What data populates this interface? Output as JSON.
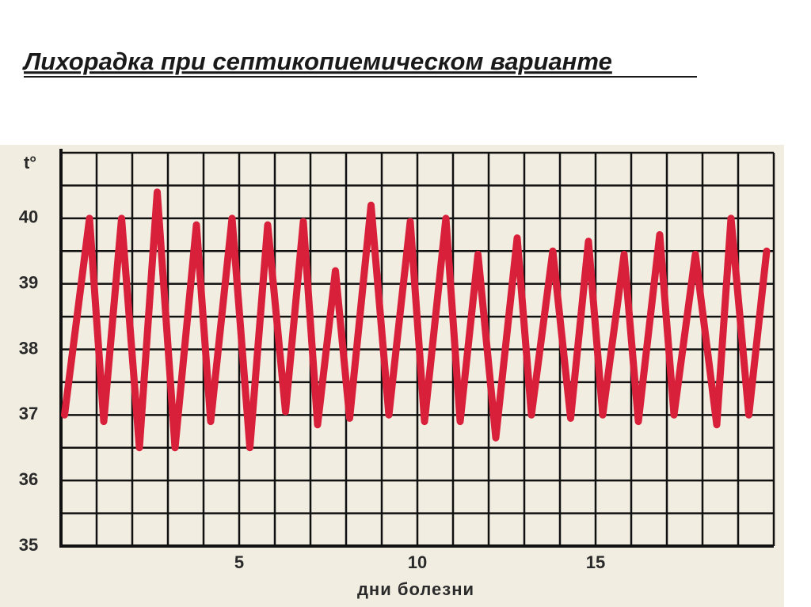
{
  "chart_data": {
    "type": "line",
    "title": "Лихорадка при септикопиемическом варианте",
    "y_label": "t°",
    "x_label": "дни болезни",
    "x": [
      0.1,
      0.8,
      1.2,
      1.7,
      2.2,
      2.7,
      3.2,
      3.8,
      4.2,
      4.8,
      5.3,
      5.8,
      6.3,
      6.8,
      7.2,
      7.7,
      8.1,
      8.7,
      9.2,
      9.8,
      10.2,
      10.8,
      11.2,
      11.7,
      12.2,
      12.8,
      13.2,
      13.8,
      14.3,
      14.8,
      15.2,
      15.8,
      16.2,
      16.8,
      17.2,
      17.8,
      18.4,
      18.8,
      19.3,
      19.8
    ],
    "series": [
      {
        "color": "#d9203a",
        "values": [
          37.0,
          40.0,
          36.9,
          40.0,
          36.5,
          40.4,
          36.5,
          39.9,
          36.9,
          40.0,
          36.5,
          39.9,
          37.05,
          39.95,
          36.85,
          39.2,
          36.95,
          40.2,
          37.0,
          39.95,
          36.9,
          40.0,
          36.9,
          39.45,
          36.65,
          39.7,
          37.0,
          39.5,
          36.95,
          39.65,
          37.0,
          39.45,
          36.9,
          39.75,
          37.0,
          39.45,
          36.85,
          40.0,
          37.0,
          39.5
        ]
      }
    ],
    "xlim": [
      0,
      20
    ],
    "ylim": [
      35,
      41
    ],
    "xticks": [
      5,
      10,
      15
    ],
    "yticks": [
      35,
      36,
      37,
      38,
      39,
      40
    ],
    "xgrid": [
      0,
      1,
      2,
      3,
      4,
      5,
      6,
      7,
      8,
      9,
      10,
      11,
      12,
      13,
      14,
      15,
      16,
      17,
      18,
      19,
      20
    ],
    "ygrid": [
      35,
      35.5,
      36,
      36.5,
      37,
      37.5,
      38,
      38.5,
      39,
      39.5,
      40,
      40.5,
      41
    ],
    "grid": true
  }
}
